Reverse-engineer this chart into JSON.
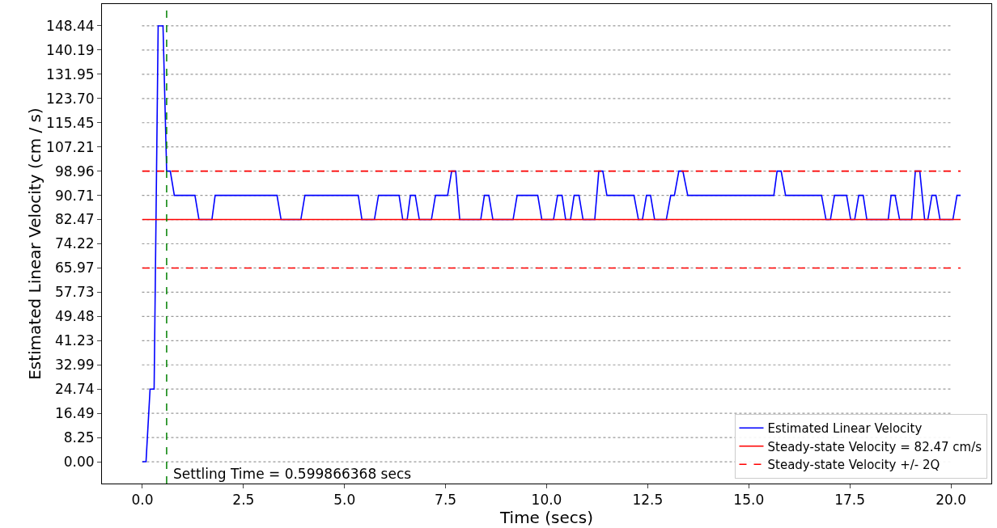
{
  "chart_data": {
    "type": "line",
    "xlabel": "Time (secs)",
    "ylabel": "Estimated Linear Velocity (cm / s)",
    "series": [
      {
        "name": "Estimated Linear Velocity",
        "color": "#0000ff",
        "x": [
          0,
          0.09,
          0.19,
          0.29,
          0.39,
          0.51,
          0.6,
          0.69,
          0.79,
          1.3,
          1.4,
          1.72,
          1.8,
          3.33,
          3.43,
          3.92,
          4.02,
          5.34,
          5.43,
          5.74,
          5.84,
          6.35,
          6.44,
          6.55,
          6.63,
          6.75,
          6.85,
          7.15,
          7.25,
          7.55,
          7.65,
          7.75,
          7.85,
          8.37,
          8.46,
          8.57,
          8.67,
          9.17,
          9.27,
          9.78,
          9.88,
          10.17,
          10.27,
          10.38,
          10.47,
          10.59,
          10.68,
          10.8,
          10.9,
          11.19,
          11.29,
          11.39,
          11.49,
          12.16,
          12.27,
          12.37,
          12.47,
          12.57,
          12.67,
          12.96,
          13.07,
          13.16,
          13.27,
          13.37,
          13.49,
          15.62,
          15.7,
          15.8,
          15.91,
          16.8,
          16.91,
          17.02,
          17.12,
          17.42,
          17.52,
          17.62,
          17.72,
          17.83,
          17.92,
          18.45,
          18.52,
          18.62,
          18.73,
          19.03,
          19.12,
          19.23,
          19.35,
          19.43,
          19.53,
          19.63,
          19.73,
          20.05,
          20.15,
          20.24
        ],
        "values": [
          0,
          0,
          24.74,
          24.74,
          148.44,
          148.44,
          98.96,
          98.96,
          90.71,
          90.71,
          82.47,
          82.47,
          90.71,
          90.71,
          82.47,
          82.47,
          90.71,
          90.71,
          82.47,
          82.47,
          90.71,
          90.71,
          82.47,
          82.47,
          90.71,
          90.71,
          82.47,
          82.47,
          90.71,
          90.71,
          98.96,
          98.96,
          82.47,
          82.47,
          90.71,
          90.71,
          82.47,
          82.47,
          90.71,
          90.71,
          82.47,
          82.47,
          90.71,
          90.71,
          82.47,
          82.47,
          90.71,
          90.71,
          82.47,
          82.47,
          98.96,
          98.96,
          90.71,
          90.71,
          82.47,
          82.47,
          90.71,
          90.71,
          82.47,
          82.47,
          90.71,
          90.71,
          98.96,
          98.96,
          90.71,
          90.71,
          98.96,
          98.96,
          90.71,
          90.71,
          82.47,
          82.47,
          90.71,
          90.71,
          82.47,
          82.47,
          90.71,
          90.71,
          82.47,
          82.47,
          90.71,
          90.71,
          82.47,
          82.47,
          98.96,
          98.96,
          82.47,
          82.47,
          90.71,
          90.71,
          82.47,
          82.47,
          90.71,
          90.71
        ],
        "line_style": "solid"
      },
      {
        "name": "Steady-state Velocity = 82.47 cm/s",
        "color": "#ff0000",
        "x": [
          0,
          20.24
        ],
        "values": [
          82.47,
          82.47
        ],
        "line_style": "solid"
      },
      {
        "name": "Steady-state Velocity +/- 2Q",
        "color": "#ff0000",
        "x": [
          0,
          20.24
        ],
        "values": [
          98.97,
          98.97
        ],
        "line_style": "dashed"
      },
      {
        "color": "#ff0000",
        "x": [
          0,
          20.24
        ],
        "values": [
          65.97,
          65.97
        ],
        "line_style": "dashed"
      }
    ],
    "ref_lines": [
      {
        "axis": "x",
        "value": 0.599866368,
        "label": "Settling Time = 0.599866368 secs",
        "color": "#008000",
        "line_style": "dashed"
      }
    ],
    "xlim": [
      -1.0,
      21.0
    ],
    "xticks": [
      {
        "value": 0,
        "label": "0.0"
      },
      {
        "value": 2.5,
        "label": "2.5"
      },
      {
        "value": 5,
        "label": "5.0"
      },
      {
        "value": 7.5,
        "label": "7.5"
      },
      {
        "value": 10,
        "label": "10.0"
      },
      {
        "value": 12.5,
        "label": "12.5"
      },
      {
        "value": 15,
        "label": "15.0"
      },
      {
        "value": 17.5,
        "label": "17.5"
      },
      {
        "value": 20,
        "label": "20.0"
      }
    ],
    "ylim": [
      -7.42,
      155.86
    ],
    "yticks": [
      {
        "value": 0,
        "label": "0.00"
      },
      {
        "value": 8.25,
        "label": "8.25"
      },
      {
        "value": 16.49,
        "label": "16.49"
      },
      {
        "value": 24.74,
        "label": "24.74"
      },
      {
        "value": 32.99,
        "label": "32.99"
      },
      {
        "value": 41.23,
        "label": "41.23"
      },
      {
        "value": 49.48,
        "label": "49.48"
      },
      {
        "value": 57.73,
        "label": "57.73"
      },
      {
        "value": 65.97,
        "label": "65.97"
      },
      {
        "value": 74.22,
        "label": "74.22"
      },
      {
        "value": 82.47,
        "label": "82.47"
      },
      {
        "value": 90.71,
        "label": "90.71"
      },
      {
        "value": 98.96,
        "label": "98.96"
      },
      {
        "value": 107.21,
        "label": "107.21"
      },
      {
        "value": 115.45,
        "label": "115.45"
      },
      {
        "value": 123.7,
        "label": "123.70"
      },
      {
        "value": 131.95,
        "label": "131.95"
      },
      {
        "value": 140.19,
        "label": "140.19"
      },
      {
        "value": 148.44,
        "label": "148.44"
      }
    ],
    "grid": "y",
    "legend": "bottom right",
    "marker": "none"
  }
}
